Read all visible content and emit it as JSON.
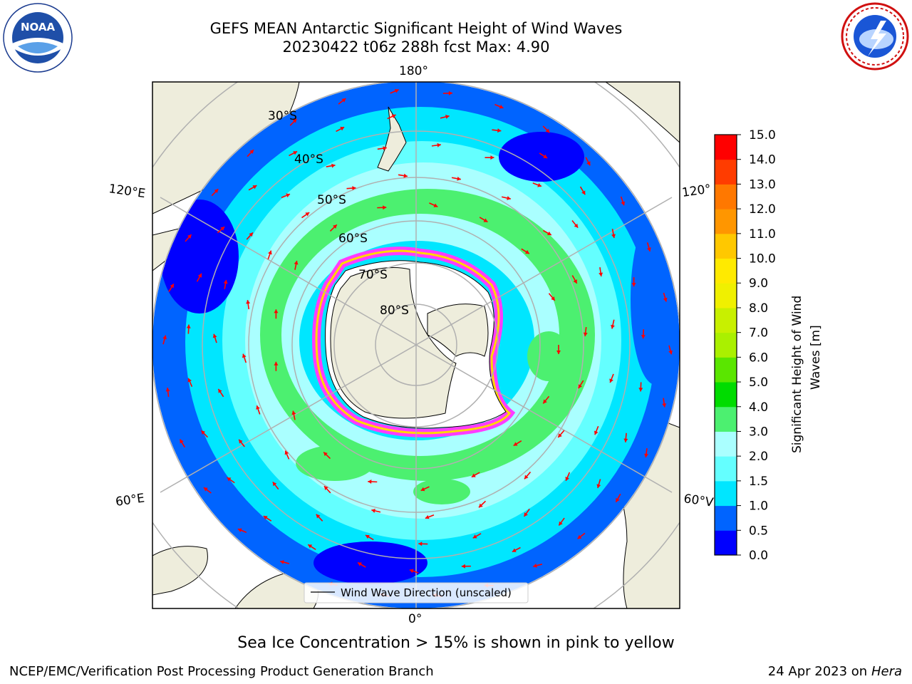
{
  "header": {
    "title_line1": "GEFS MEAN Antarctic Significant Height of Wind Waves",
    "title_line2": "20230422 t06z 288h fcst   Max: 4.90"
  },
  "logos": {
    "left": "noaa-logo",
    "right": "nws-logo"
  },
  "map": {
    "projection": "south-polar-stereographic",
    "lon_labels": {
      "top": "180°",
      "bottom": "0°",
      "left_upper": "120°E",
      "left_lower": "60°E",
      "right_upper": "120°",
      "right_lower": "60°V"
    },
    "lat_labels": [
      "30°S",
      "40°S",
      "50°S",
      "60°S",
      "70°S",
      "80°S"
    ],
    "legend_text": "Wind Wave Direction (unscaled)",
    "colors": {
      "land": "#eeeddc",
      "ice_sheet": "#ffffff",
      "sea_ice_edge": "#ff3cff",
      "arrows": "#ff0000",
      "graticule": "#b0b0b0"
    }
  },
  "colorbar": {
    "label": "Significant Height of Wind Waves [m]",
    "label_line1": "Significant Height of Wind",
    "label_line2": "Waves [m]",
    "ticks": [
      "0.0",
      "0.5",
      "1.0",
      "1.5",
      "2.0",
      "3.0",
      "4.0",
      "5.0",
      "6.0",
      "7.0",
      "8.0",
      "9.0",
      "10.0",
      "11.0",
      "12.0",
      "13.0",
      "14.0",
      "15.0"
    ],
    "colors": [
      "#0000ff",
      "#0064ff",
      "#00e6ff",
      "#64ffff",
      "#aaffff",
      "#4cf070",
      "#00dc00",
      "#5ae600",
      "#aaf000",
      "#c8f000",
      "#f0f000",
      "#ffea00",
      "#ffc800",
      "#ff9600",
      "#ff7800",
      "#ff3c00",
      "#ff0000"
    ]
  },
  "footer": {
    "ice_note": "Sea Ice Concentration > 15% is shown in pink to yellow",
    "credit": "NCEP/EMC/Verification Post Processing Product Generation Branch",
    "date_prefix": "24 Apr 2023 on ",
    "date_machine": "Hera"
  }
}
